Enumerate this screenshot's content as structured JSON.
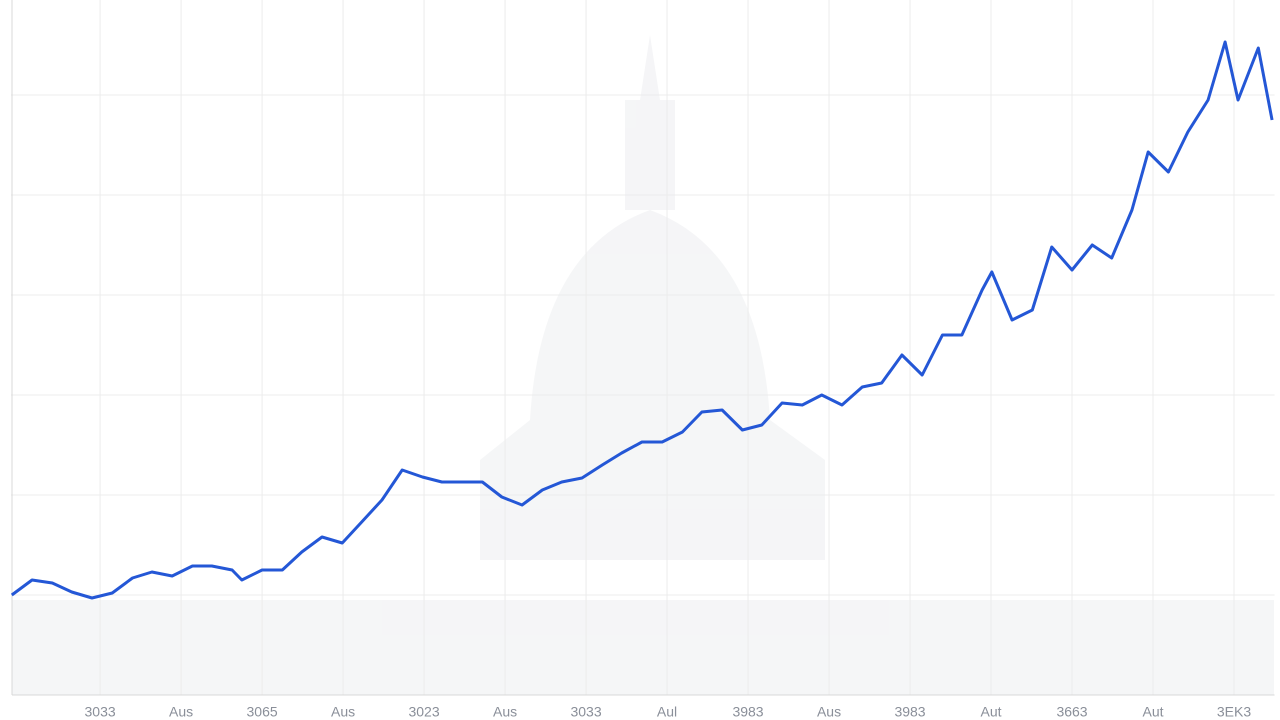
{
  "chart_data": {
    "type": "line",
    "x": [
      -1.09,
      -0.84,
      -0.59,
      -0.35,
      -0.1,
      0.15,
      0.4,
      0.64,
      0.89,
      1.14,
      1.38,
      1.63,
      1.75,
      2.0,
      2.25,
      2.49,
      2.74,
      2.99,
      3.23,
      3.48,
      3.73,
      3.98,
      4.22,
      4.47,
      4.72,
      4.96,
      5.21,
      5.46,
      5.7,
      5.95,
      6.2,
      6.44,
      6.69,
      6.94,
      7.19,
      7.43,
      7.68,
      7.93,
      8.17,
      8.42,
      8.67,
      8.91,
      9.16,
      9.41,
      9.65,
      9.9,
      10.15,
      10.4,
      10.64,
      10.89,
      11.01,
      11.26,
      11.51,
      11.75,
      12.0,
      12.25,
      12.49,
      12.74,
      12.94,
      13.19,
      13.43,
      13.68,
      13.89,
      14.05,
      14.3,
      14.47
    ],
    "series": [
      {
        "color": "#2457d6",
        "values": [
          1.0,
          1.15,
          1.12,
          1.03,
          0.97,
          1.02,
          1.17,
          1.23,
          1.19,
          1.29,
          1.29,
          1.25,
          1.15,
          1.25,
          1.25,
          1.43,
          1.58,
          1.52,
          1.73,
          1.95,
          2.25,
          2.18,
          2.13,
          2.13,
          2.13,
          1.98,
          1.9,
          2.05,
          2.13,
          2.17,
          2.3,
          2.42,
          2.53,
          2.53,
          2.63,
          2.83,
          2.85,
          2.65,
          2.7,
          2.92,
          2.9,
          3.0,
          2.9,
          3.08,
          3.12,
          3.4,
          3.2,
          3.6,
          3.6,
          4.05,
          4.23,
          3.75,
          3.85,
          4.48,
          4.25,
          4.5,
          4.37,
          4.85,
          5.43,
          5.23,
          5.63,
          5.95,
          6.53,
          5.95,
          6.47,
          5.75
        ]
      }
    ],
    "xlim": [
      -1.1,
      14.5
    ],
    "xticks": [
      {
        "value": 0,
        "label": "3033"
      },
      {
        "value": 1,
        "label": "Aus"
      },
      {
        "value": 2,
        "label": "3065"
      },
      {
        "value": 3,
        "label": "Aus"
      },
      {
        "value": 4,
        "label": "3023"
      },
      {
        "value": 5,
        "label": "Aus"
      },
      {
        "value": 6,
        "label": "3033"
      },
      {
        "value": 7,
        "label": "Aul"
      },
      {
        "value": 8,
        "label": "3983"
      },
      {
        "value": 9,
        "label": "Aus"
      },
      {
        "value": 10,
        "label": "3983"
      },
      {
        "value": 11,
        "label": "Aut"
      },
      {
        "value": 12,
        "label": "3663"
      },
      {
        "value": 13,
        "label": "Aut"
      },
      {
        "value": 14,
        "label": "3EK3"
      }
    ],
    "ylim": [
      0,
      7
    ],
    "yticks": [
      1,
      2,
      3,
      4,
      5,
      6
    ],
    "grid": true
  }
}
